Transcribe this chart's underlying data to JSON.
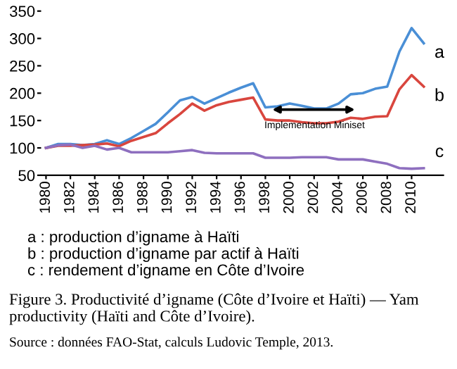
{
  "chart_data": {
    "type": "line",
    "x": [
      1980,
      1981,
      1982,
      1983,
      1984,
      1985,
      1986,
      1987,
      1988,
      1989,
      1990,
      1991,
      1992,
      1993,
      1994,
      1995,
      1996,
      1997,
      1998,
      1999,
      2000,
      2001,
      2002,
      2003,
      2004,
      2005,
      2006,
      2007,
      2008,
      2009,
      2010,
      2011
    ],
    "series": [
      {
        "name": "a",
        "color": "#4a8fd6",
        "values": [
          100,
          107,
          107,
          105,
          107,
          114,
          107,
          118,
          131,
          144,
          165,
          187,
          193,
          181,
          191,
          201,
          210,
          218,
          174,
          176,
          181,
          177,
          172,
          172,
          181,
          198,
          200,
          208,
          212,
          276,
          319,
          291
        ]
      },
      {
        "name": "b",
        "color": "#d9463e",
        "values": [
          100,
          104,
          104,
          105,
          106,
          108,
          103,
          113,
          120,
          127,
          145,
          162,
          181,
          168,
          178,
          184,
          188,
          192,
          152,
          150,
          150,
          147,
          145,
          145,
          148,
          155,
          153,
          157,
          158,
          207,
          233,
          212
        ]
      },
      {
        "name": "c",
        "color": "#8e6fbf",
        "values": [
          100,
          105,
          106,
          100,
          104,
          97,
          100,
          92,
          92,
          92,
          92,
          94,
          96,
          91,
          90,
          90,
          90,
          90,
          82,
          82,
          82,
          83,
          83,
          83,
          79,
          79,
          79,
          75,
          71,
          63,
          62,
          63
        ]
      }
    ],
    "xlim": [
      1979.6,
      2012.6
    ],
    "xticks": [
      1980,
      1982,
      1984,
      1986,
      1988,
      1990,
      1992,
      1994,
      1996,
      1998,
      2000,
      2002,
      2004,
      2006,
      2008,
      2010
    ],
    "ylim": [
      50,
      350
    ],
    "yticks": [
      50,
      100,
      150,
      200,
      250,
      300,
      350
    ],
    "grid": false,
    "annotations": [
      "Implementation Miniset",
      "a : production d’igname à Haïti",
      "b : production d’igname par actif à Haïti",
      "c : rendement d’igname en Côte d’Ivoire",
      "Figure 3. Productivité d’igname (Côte d’Ivoire et Haïti) — Yam productivity (Haïti and Côte d’Ivoire).",
      "Source : données FAO-Stat, calculs Ludovic Temple, 2013."
    ]
  }
}
